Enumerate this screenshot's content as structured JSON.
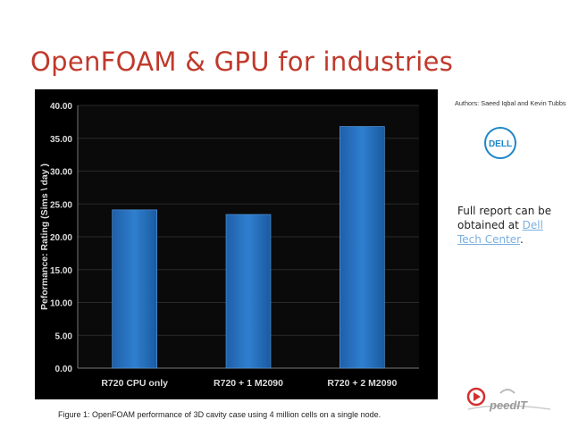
{
  "slide": {
    "title": "OpenFOAM & GPU for industries",
    "authors": "Authors: Saeed Iqbal and Kevin Tubbs",
    "report_text": "Full report can be obtained at",
    "report_link": "Dell Tech Center",
    "report_suffix": ".",
    "caption": "Figure 1: OpenFOAM performance of 3D cavity case using 4 million cells on a single node.",
    "logos": {
      "dell": "DELL",
      "speedit": "peedIT"
    }
  },
  "colors": {
    "title": "#c0392b",
    "bar": "#2f7fcf",
    "panel": "#000000",
    "link": "#7ab0e0"
  },
  "chart_data": {
    "type": "bar",
    "categories": [
      "R720 CPU only",
      "R720 + 1 M2090",
      "R720 + 2 M2090"
    ],
    "values": [
      24.1,
      23.4,
      36.8
    ],
    "title": "",
    "xlabel": "",
    "ylabel": "Peformance: Rating (Sims \\ day )",
    "ylim": [
      0,
      40
    ],
    "yticks": [
      "0.00",
      "5.00",
      "10.00",
      "15.00",
      "20.00",
      "25.00",
      "30.00",
      "35.00",
      "40.00"
    ],
    "grid": true,
    "legend": "none"
  }
}
